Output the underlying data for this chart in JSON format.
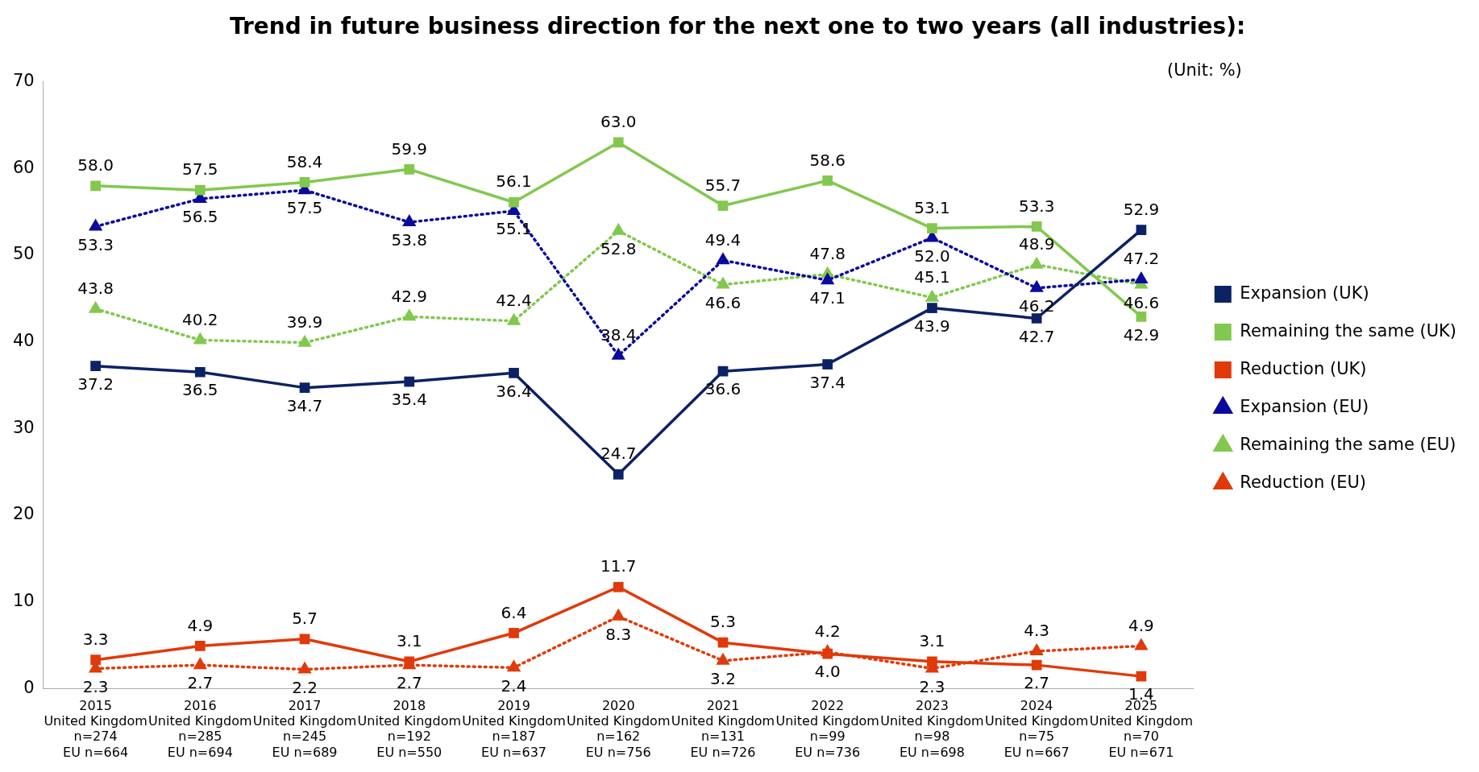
{
  "chart_data": {
    "type": "line",
    "title": "Trend in future business direction for the next one to two years (all industries):",
    "annotations": [
      "(Unit: %)"
    ],
    "categories": [
      "2015\nUnited Kingdom\nn=274\nEU n=664",
      "2016\nUnited Kingdom\nn=285\nEU n=694",
      "2017\nUnited Kingdom\nn=245\nEU n=689",
      "2018\nUnited Kingdom\nn=192\nEU n=550",
      "2019\nUnited Kingdom\nn=187\nEU n=637",
      "2020\nUnited Kingdom\nn=162\nEU n=756",
      "2021\nUnited Kingdom\nn=131\nEU n=726",
      "2022\nUnited Kingdom\nn=99\nEU n=736",
      "2023\nUnited Kingdom\nn=98\nEU n=698",
      "2024\nUnited Kingdom\nn=75\nEU n=667",
      "2025\nUnited Kingdom\nn=70\nEU n=671"
    ],
    "series": [
      {
        "name": "Expansion (UK)",
        "color": "#0b2265",
        "marker": "square",
        "line_style": "solid",
        "values": [
          37.2,
          36.5,
          34.7,
          35.4,
          36.4,
          24.7,
          36.6,
          37.4,
          43.9,
          42.7,
          52.9
        ],
        "value_labels": [
          "37.2",
          "36.5",
          "34.7",
          "35.4",
          "36.4",
          "24.7",
          "36.6",
          "37.4",
          "43.9",
          "42.7",
          "52.9"
        ]
      },
      {
        "name": "Remaining the same (UK)",
        "color": "#82c84e",
        "marker": "square",
        "line_style": "solid",
        "values": [
          58.0,
          57.5,
          58.4,
          59.9,
          56.1,
          63.0,
          55.7,
          58.6,
          53.1,
          53.3,
          42.9
        ],
        "value_labels": [
          "58.0",
          "57.5",
          "58.4",
          "59.9",
          "56.1",
          "63.0",
          "55.7",
          "58.6",
          "53.1",
          "53.3",
          "42.9"
        ]
      },
      {
        "name": "Reduction (UK)",
        "color": "#e03a0b",
        "marker": "square",
        "line_style": "solid",
        "values": [
          3.3,
          4.9,
          5.7,
          3.1,
          6.4,
          11.7,
          5.3,
          4.0,
          3.1,
          2.7,
          1.4
        ],
        "value_labels": [
          "3.3",
          "4.9",
          "5.7",
          "3.1",
          "6.4",
          "11.7",
          "5.3",
          "4.0",
          "3.1",
          "2.7",
          "1.4"
        ]
      },
      {
        "name": "Expansion (EU)",
        "color": "#0a0a9c",
        "marker": "triangle",
        "line_style": "dotted",
        "values": [
          53.3,
          56.5,
          57.5,
          53.8,
          55.1,
          38.4,
          49.4,
          47.1,
          52.0,
          46.2,
          47.2
        ],
        "value_labels": [
          "53.3",
          "56.5",
          "57.5",
          "53.8",
          "55.1",
          "38.4",
          "49.4",
          "47.1",
          "52.0",
          "46.2",
          "47.2"
        ]
      },
      {
        "name": "Remaining the same (EU)",
        "color": "#82c84e",
        "marker": "triangle",
        "line_style": "dotted",
        "values": [
          43.8,
          40.2,
          39.9,
          42.9,
          42.4,
          52.8,
          46.6,
          47.8,
          45.1,
          48.9,
          46.6
        ],
        "value_labels": [
          "43.8",
          "40.2",
          "39.9",
          "42.9",
          "42.4",
          "52.8",
          "46.6",
          "47.8",
          "45.1",
          "48.9",
          "46.6"
        ]
      },
      {
        "name": "Reduction (EU)",
        "color": "#e03a0b",
        "marker": "triangle",
        "line_style": "dotted",
        "values": [
          2.3,
          2.7,
          2.2,
          2.7,
          2.4,
          8.3,
          3.2,
          4.2,
          2.3,
          4.3,
          4.9
        ],
        "value_labels": [
          "2.3",
          "2.7",
          "2.2",
          "2.7",
          "2.4",
          "8.3",
          "3.2",
          "4.2",
          "2.3",
          "4.3",
          "4.9"
        ]
      }
    ],
    "ylim": [
      0,
      70
    ],
    "yticks": [
      0,
      10,
      20,
      30,
      40,
      50,
      60,
      70
    ],
    "grid": false,
    "legend": "right"
  }
}
